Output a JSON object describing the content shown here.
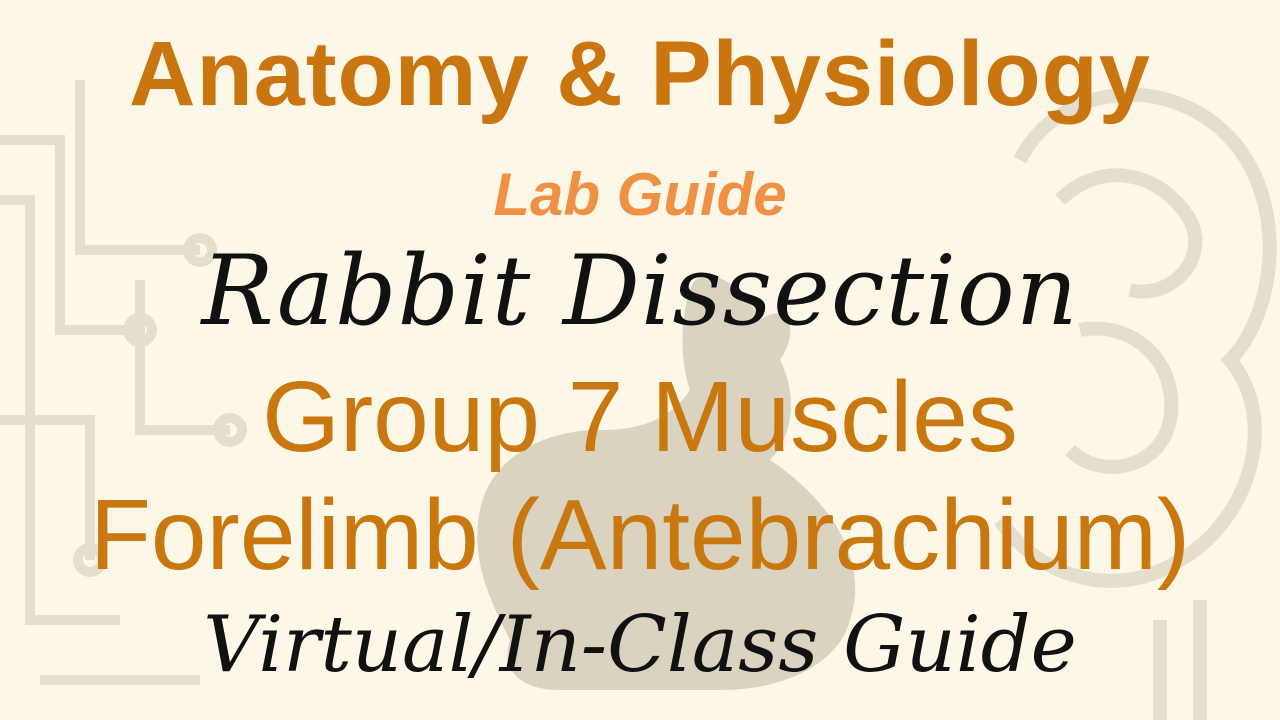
{
  "title": "Anatomy & Physiology",
  "subtitle": "Lab Guide",
  "lines": [
    "Rabbit Dissection",
    "Group 7 Muscles",
    "Forelimb (Antebrachium)",
    "Virtual/In-Class Guide"
  ],
  "colors": {
    "background": "#fcf7e6",
    "title": "#c97510",
    "subtitle": "#ef9145",
    "accent_text": "#c8780f",
    "dark_text": "#111111",
    "decor": "#ddd8c6"
  },
  "icons": [
    "circuit-decoration",
    "rabbit-silhouette",
    "brain-decoration"
  ]
}
